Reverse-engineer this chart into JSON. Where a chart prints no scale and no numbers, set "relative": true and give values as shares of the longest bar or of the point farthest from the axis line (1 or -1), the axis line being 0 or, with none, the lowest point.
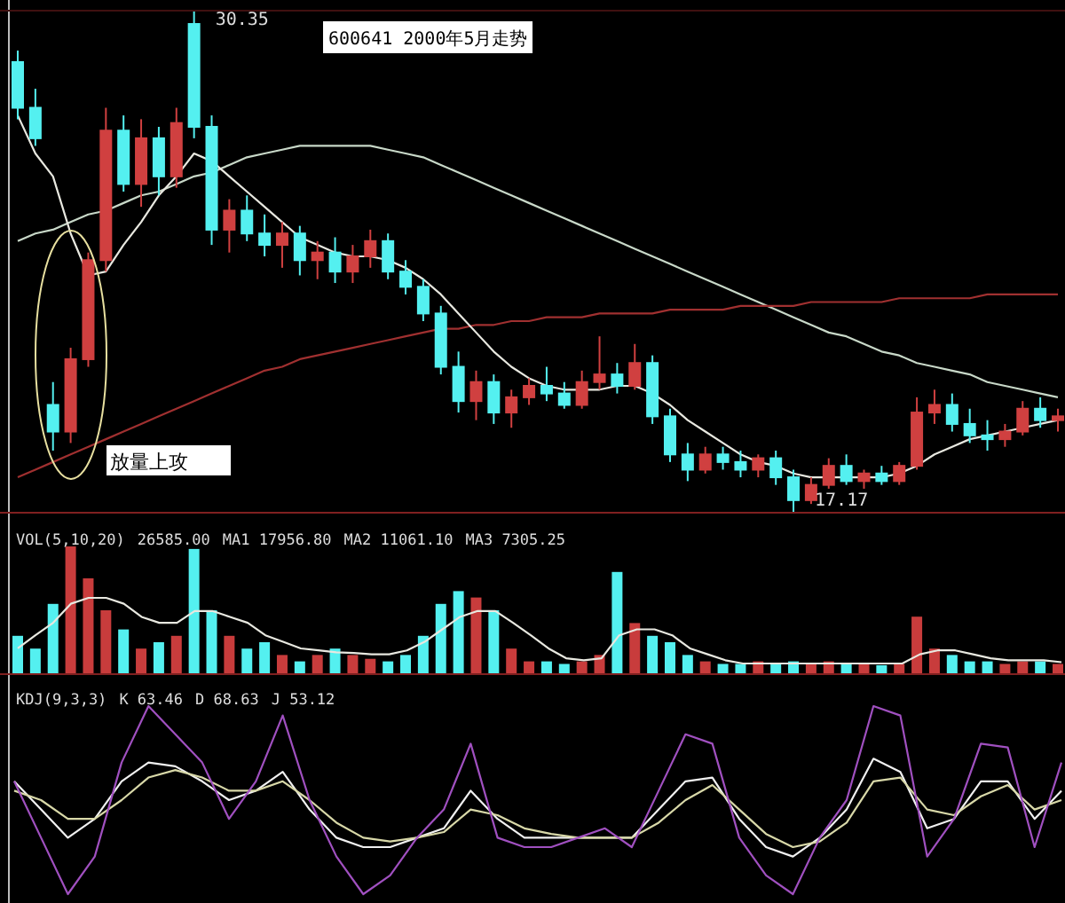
{
  "chart_data": [
    {
      "type": "candlestick",
      "title": "600641 2000年5月走势",
      "categories": [
        null,
        null,
        null,
        null,
        null,
        null,
        null,
        null,
        null,
        null,
        null,
        null,
        null,
        null,
        null,
        null,
        null,
        null,
        null,
        null,
        null,
        null,
        null,
        null,
        null,
        null,
        null,
        null,
        null,
        null,
        null,
        null,
        null,
        null,
        null,
        null,
        null,
        null,
        null,
        null,
        null,
        null,
        null,
        null,
        null,
        null,
        null,
        null,
        null,
        null,
        null,
        null,
        null,
        null,
        null,
        null,
        null,
        null,
        null,
        null
      ],
      "ylim": [
        17.17,
        30.35
      ],
      "ohlc": [
        [
          29.0,
          29.3,
          27.5,
          27.8
        ],
        [
          27.8,
          28.3,
          26.8,
          27.0
        ],
        [
          20.0,
          20.6,
          18.8,
          19.3
        ],
        [
          19.3,
          21.5,
          19.0,
          21.2
        ],
        [
          21.2,
          24.0,
          21.0,
          23.8
        ],
        [
          23.8,
          27.8,
          23.5,
          27.2
        ],
        [
          27.2,
          27.6,
          25.6,
          25.8
        ],
        [
          25.8,
          27.5,
          25.2,
          27.0
        ],
        [
          27.0,
          27.3,
          25.5,
          26.0
        ],
        [
          26.0,
          27.8,
          25.7,
          27.4
        ],
        [
          30.0,
          30.35,
          27.0,
          27.3
        ],
        [
          27.3,
          27.6,
          24.2,
          24.6
        ],
        [
          24.6,
          25.4,
          24.0,
          25.1
        ],
        [
          25.1,
          25.5,
          24.3,
          24.5
        ],
        [
          24.5,
          25.0,
          23.9,
          24.2
        ],
        [
          24.2,
          24.8,
          23.6,
          24.5
        ],
        [
          24.5,
          24.7,
          23.4,
          23.8
        ],
        [
          23.8,
          24.3,
          23.3,
          24.0
        ],
        [
          24.0,
          24.4,
          23.2,
          23.5
        ],
        [
          23.5,
          24.2,
          23.2,
          23.9
        ],
        [
          23.9,
          24.6,
          23.6,
          24.3
        ],
        [
          24.3,
          24.5,
          23.3,
          23.5
        ],
        [
          23.5,
          23.8,
          22.9,
          23.1
        ],
        [
          23.1,
          23.3,
          22.2,
          22.4
        ],
        [
          22.4,
          22.6,
          20.8,
          21.0
        ],
        [
          21.0,
          21.4,
          19.8,
          20.1
        ],
        [
          20.1,
          20.9,
          19.6,
          20.6
        ],
        [
          20.6,
          20.8,
          19.5,
          19.8
        ],
        [
          19.8,
          20.4,
          19.4,
          20.2
        ],
        [
          20.2,
          20.7,
          20.0,
          20.5
        ],
        [
          20.5,
          21.0,
          20.1,
          20.3
        ],
        [
          20.3,
          20.6,
          19.9,
          20.0
        ],
        [
          20.0,
          20.9,
          19.9,
          20.6
        ],
        [
          20.6,
          21.8,
          20.4,
          20.8
        ],
        [
          20.8,
          21.1,
          20.3,
          20.5
        ],
        [
          20.5,
          21.6,
          20.4,
          21.1
        ],
        [
          21.1,
          21.3,
          19.5,
          19.7
        ],
        [
          19.7,
          19.9,
          18.5,
          18.7
        ],
        [
          18.7,
          19.0,
          18.0,
          18.3
        ],
        [
          18.3,
          18.9,
          18.2,
          18.7
        ],
        [
          18.7,
          18.9,
          18.3,
          18.5
        ],
        [
          18.5,
          18.8,
          18.1,
          18.3
        ],
        [
          18.3,
          18.7,
          18.1,
          18.6
        ],
        [
          18.6,
          18.8,
          17.9,
          18.1
        ],
        [
          18.1,
          18.3,
          17.17,
          17.5
        ],
        [
          17.5,
          18.1,
          17.4,
          17.9
        ],
        [
          17.9,
          18.6,
          17.8,
          18.4
        ],
        [
          18.4,
          18.7,
          17.9,
          18.0
        ],
        [
          18.0,
          18.3,
          17.8,
          18.2
        ],
        [
          18.2,
          18.4,
          17.9,
          18.0
        ],
        [
          18.0,
          18.5,
          17.9,
          18.4
        ],
        [
          18.4,
          20.2,
          18.3,
          19.8
        ],
        [
          19.8,
          20.4,
          19.5,
          20.0
        ],
        [
          20.0,
          20.3,
          19.3,
          19.5
        ],
        [
          19.5,
          19.9,
          19.0,
          19.2
        ],
        [
          19.2,
          19.6,
          18.8,
          19.1
        ],
        [
          19.1,
          19.5,
          18.9,
          19.3
        ],
        [
          19.3,
          20.1,
          19.2,
          19.9
        ],
        [
          19.9,
          20.2,
          19.4,
          19.6
        ],
        [
          19.6,
          19.9,
          19.3,
          19.7
        ]
      ],
      "series": [
        {
          "type": "line",
          "color": "#c8d8c8",
          "values": [
            24.3,
            24.5,
            24.6,
            24.8,
            25.0,
            25.1,
            25.3,
            25.5,
            25.6,
            25.8,
            26.0,
            26.1,
            26.3,
            26.5,
            26.6,
            26.7,
            26.8,
            26.8,
            26.8,
            26.8,
            26.8,
            26.7,
            26.6,
            26.5,
            26.3,
            26.1,
            25.9,
            25.7,
            25.5,
            25.3,
            25.1,
            24.9,
            24.7,
            24.5,
            24.3,
            24.1,
            23.9,
            23.7,
            23.5,
            23.3,
            23.1,
            22.9,
            22.7,
            22.5,
            22.3,
            22.1,
            21.9,
            21.8,
            21.6,
            21.4,
            21.3,
            21.1,
            21.0,
            20.9,
            20.8,
            20.6,
            20.5,
            20.4,
            20.3,
            20.2
          ]
        },
        {
          "type": "line",
          "color": "#a03030",
          "values": [
            18.1,
            18.3,
            18.5,
            18.7,
            18.9,
            19.1,
            19.3,
            19.5,
            19.7,
            19.9,
            20.1,
            20.3,
            20.5,
            20.7,
            20.9,
            21.0,
            21.2,
            21.3,
            21.4,
            21.5,
            21.6,
            21.7,
            21.8,
            21.9,
            22.0,
            22.0,
            22.1,
            22.1,
            22.2,
            22.2,
            22.3,
            22.3,
            22.3,
            22.4,
            22.4,
            22.4,
            22.4,
            22.5,
            22.5,
            22.5,
            22.5,
            22.6,
            22.6,
            22.6,
            22.6,
            22.7,
            22.7,
            22.7,
            22.7,
            22.7,
            22.8,
            22.8,
            22.8,
            22.8,
            22.8,
            22.9,
            22.9,
            22.9,
            22.9,
            22.9
          ]
        },
        {
          "type": "line",
          "color": "#e8e8e0",
          "values": [
            27.6,
            26.6,
            26.0,
            24.5,
            23.4,
            23.5,
            24.2,
            24.8,
            25.5,
            26.0,
            26.6,
            26.4,
            26.0,
            25.6,
            25.2,
            24.8,
            24.4,
            24.2,
            24.0,
            23.9,
            23.9,
            23.8,
            23.6,
            23.3,
            22.9,
            22.4,
            21.9,
            21.4,
            21.0,
            20.7,
            20.5,
            20.4,
            20.4,
            20.4,
            20.5,
            20.5,
            20.3,
            20.0,
            19.6,
            19.3,
            19.0,
            18.7,
            18.5,
            18.4,
            18.2,
            18.1,
            18.1,
            18.1,
            18.1,
            18.1,
            18.2,
            18.4,
            18.7,
            18.9,
            19.1,
            19.2,
            19.3,
            19.4,
            19.5,
            19.6
          ]
        }
      ],
      "annotations": [
        "放量上攻",
        "30.35",
        "17.17"
      ]
    },
    {
      "type": "bar",
      "relative": true,
      "title": "VOL(5,10,20)",
      "categories": [
        null,
        null,
        null,
        null,
        null,
        null,
        null,
        null,
        null,
        null,
        null,
        null,
        null,
        null,
        null,
        null,
        null,
        null,
        null,
        null,
        null,
        null,
        null,
        null,
        null,
        null,
        null,
        null,
        null,
        null,
        null,
        null,
        null,
        null,
        null,
        null,
        null,
        null,
        null,
        null,
        null,
        null,
        null,
        null,
        null,
        null,
        null,
        null,
        null,
        null,
        null,
        null,
        null,
        null,
        null,
        null,
        null,
        null,
        null,
        null
      ],
      "series": [
        {
          "type": "bar",
          "values": [
            0.3,
            0.2,
            0.55,
            1.0,
            0.75,
            0.5,
            0.35,
            0.2,
            0.25,
            0.3,
            0.98,
            0.5,
            0.3,
            0.2,
            0.25,
            0.15,
            0.1,
            0.15,
            0.2,
            0.15,
            0.12,
            0.1,
            0.15,
            0.3,
            0.55,
            0.65,
            0.6,
            0.5,
            0.2,
            0.1,
            0.1,
            0.08,
            0.1,
            0.15,
            0.8,
            0.4,
            0.3,
            0.25,
            0.15,
            0.1,
            0.08,
            0.08,
            0.1,
            0.08,
            0.1,
            0.08,
            0.1,
            0.08,
            0.08,
            0.07,
            0.08,
            0.45,
            0.2,
            0.15,
            0.1,
            0.1,
            0.08,
            0.1,
            0.1,
            0.08
          ],
          "colors": [
            "#54f0f0",
            "#54f0f0",
            "#54f0f0",
            "#c83c3c",
            "#c83c3c",
            "#c83c3c",
            "#54f0f0",
            "#c83c3c",
            "#54f0f0",
            "#c83c3c",
            "#54f0f0",
            "#54f0f0",
            "#c83c3c",
            "#54f0f0",
            "#54f0f0",
            "#c83c3c",
            "#54f0f0",
            "#c83c3c",
            "#54f0f0",
            "#c83c3c",
            "#c83c3c",
            "#54f0f0",
            "#54f0f0",
            "#54f0f0",
            "#54f0f0",
            "#54f0f0",
            "#c83c3c",
            "#54f0f0",
            "#c83c3c",
            "#c83c3c",
            "#54f0f0",
            "#54f0f0",
            "#c83c3c",
            "#c83c3c",
            "#54f0f0",
            "#c83c3c",
            "#54f0f0",
            "#54f0f0",
            "#54f0f0",
            "#c83c3c",
            "#54f0f0",
            "#54f0f0",
            "#c83c3c",
            "#54f0f0",
            "#54f0f0",
            "#c83c3c",
            "#c83c3c",
            "#54f0f0",
            "#c83c3c",
            "#54f0f0",
            "#c83c3c",
            "#c83c3c",
            "#c83c3c",
            "#54f0f0",
            "#54f0f0",
            "#54f0f0",
            "#c83c3c",
            "#c83c3c",
            "#54f0f0",
            "#c83c3c"
          ]
        }
      ],
      "annotations": [
        "26585.00",
        "MA1 17956.80",
        "MA2 11061.10",
        "MA3 7305.25"
      ]
    },
    {
      "type": "line",
      "relative": true,
      "categories": [
        null,
        null,
        null,
        null,
        null,
        null,
        null,
        null,
        null,
        null,
        null,
        null,
        null,
        null,
        null,
        null,
        null,
        null,
        null,
        null,
        null,
        null,
        null,
        null,
        null,
        null,
        null,
        null,
        null,
        null,
        null,
        null,
        null,
        null,
        null,
        null,
        null,
        null,
        null,
        null,
        null,
        null,
        null,
        null,
        null,
        null,
        null,
        null,
        null,
        null,
        null,
        null,
        null,
        null,
        null,
        null,
        null,
        null,
        null,
        null
      ],
      "series": [
        {
          "color": "#e8e8e0",
          "values": [
            0.23,
            0.43,
            0.62,
            0.91,
            1,
            1,
            0.91,
            0.71,
            0.62,
            0.62,
            0.8,
            0.8,
            0.71,
            0.62,
            0.43,
            0.33,
            0.23,
            0.2,
            0.17,
            0.16,
            0.14,
            0.14,
            0.2,
            0.33,
            0.52,
            0.71,
            0.8,
            0.8,
            0.62,
            0.43,
            0.23,
            0.08,
            0.05,
            0.08,
            0.43,
            0.52,
            0.52,
            0.43,
            0.23,
            0.14,
            0.05,
            0,
            0,
            0,
            0,
            0,
            0,
            0,
            0,
            0,
            0,
            0.14,
            0.2,
            0.2,
            0.14,
            0.08,
            0.05,
            0.05,
            0.05,
            0.02
          ]
        }
      ]
    },
    {
      "type": "line",
      "relative": true,
      "title": "KDJ(9,3,3)",
      "categories": [
        null,
        null,
        null,
        null,
        null,
        null,
        null,
        null,
        null,
        null,
        null,
        null,
        null,
        null,
        null,
        null,
        null,
        null,
        null,
        null,
        null,
        null,
        null,
        null,
        null,
        null,
        null,
        null,
        null,
        null,
        null,
        null,
        null,
        null,
        null,
        null,
        null,
        null,
        null,
        null
      ],
      "series": [
        {
          "color": "#f0f0f0",
          "values": [
            0.6,
            0.45,
            0.3,
            0.4,
            0.6,
            0.7,
            0.68,
            0.6,
            0.5,
            0.55,
            0.65,
            0.45,
            0.3,
            0.25,
            0.25,
            0.3,
            0.35,
            0.55,
            0.4,
            0.3,
            0.3,
            0.3,
            0.3,
            0.3,
            0.45,
            0.6,
            0.62,
            0.4,
            0.25,
            0.2,
            0.3,
            0.45,
            0.72,
            0.65,
            0.35,
            0.4,
            0.6,
            0.6,
            0.4,
            0.55
          ]
        },
        {
          "color": "#d8d8a8",
          "values": [
            0.55,
            0.5,
            0.4,
            0.4,
            0.5,
            0.62,
            0.66,
            0.62,
            0.55,
            0.55,
            0.6,
            0.5,
            0.38,
            0.3,
            0.28,
            0.3,
            0.33,
            0.45,
            0.42,
            0.35,
            0.32,
            0.3,
            0.3,
            0.3,
            0.38,
            0.5,
            0.58,
            0.45,
            0.32,
            0.25,
            0.28,
            0.38,
            0.6,
            0.62,
            0.45,
            0.42,
            0.52,
            0.58,
            0.45,
            0.5
          ]
        },
        {
          "color": "#a050c0",
          "values": [
            0.6,
            0.3,
            0,
            0.2,
            0.7,
            1.0,
            0.85,
            0.7,
            0.4,
            0.6,
            0.95,
            0.5,
            0.2,
            0,
            0.1,
            0.3,
            0.45,
            0.8,
            0.3,
            0.25,
            0.25,
            0.3,
            0.35,
            0.25,
            0.55,
            0.85,
            0.8,
            0.3,
            0.1,
            0,
            0.3,
            0.5,
            1.0,
            0.95,
            0.2,
            0.4,
            0.8,
            0.78,
            0.25,
            0.7
          ]
        }
      ],
      "annotations": [
        "K 63.46",
        "D 68.63",
        "J 53.12"
      ]
    }
  ]
}
